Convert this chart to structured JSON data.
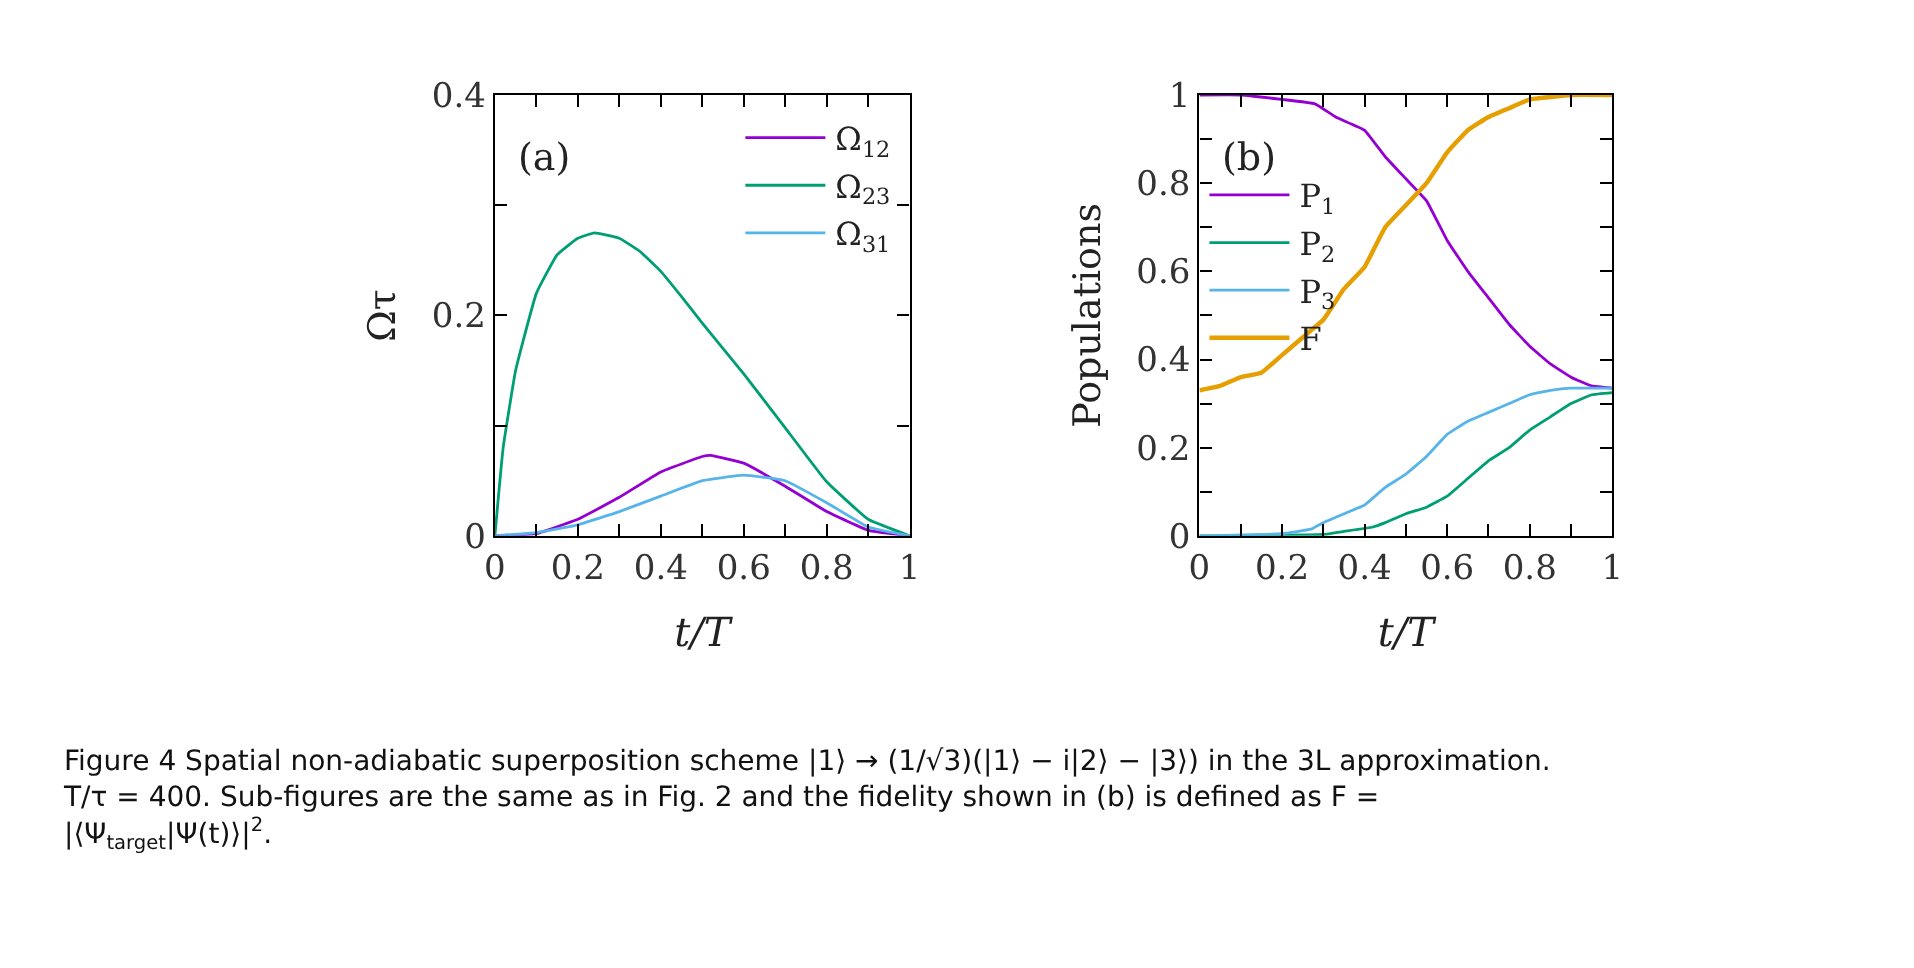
{
  "chart_data": [
    {
      "type": "line",
      "xlabel": "t/T",
      "ylabel": "Ωτ",
      "annotations": [
        "(a)",
        "Figure 4 Spatial non-adiabatic superposition scheme |1⟩ → (1/√3)(|1⟩ − i|2⟩ − |3⟩) in the 3L approximation. T/τ = 400. Sub-figures are the same as in Fig. 2 and the fidelity shown in (b) is defined as F = |⟨Ψ$_{target}$|Ψ(t)⟩|$^{2}$."
      ],
      "xlim": [
        0,
        1
      ],
      "xticks": [
        0,
        {
          "value": 0.1,
          "label": null
        },
        0.2,
        {
          "value": 0.3,
          "label": null
        },
        0.4,
        {
          "value": 0.5,
          "label": null
        },
        0.6,
        {
          "value": 0.7,
          "label": null
        },
        0.8,
        {
          "value": 0.9,
          "label": null
        },
        1
      ],
      "ylim": [
        0,
        0.4
      ],
      "yticks": [
        0,
        {
          "value": 0.1,
          "label": null
        },
        0.2,
        {
          "value": 0.3,
          "label": null
        },
        0.4
      ],
      "legend": "top right",
      "marker": "none",
      "line_style": "solid",
      "series": [
        {
          "name": "Ω$_{12}$",
          "color": "#9400d3",
          "x": [
            0,
            0.1,
            0.2,
            0.3,
            0.4,
            0.5,
            0.52,
            0.6,
            0.7,
            0.8,
            0.9,
            1
          ],
          "values": [
            0,
            0.002,
            0.015,
            0.035,
            0.058,
            0.072,
            0.073,
            0.066,
            0.045,
            0.022,
            0.005,
            0
          ]
        },
        {
          "name": "Ω$_{23}$",
          "color": "#009e73",
          "x": [
            0,
            0.02,
            0.05,
            0.1,
            0.15,
            0.2,
            0.24,
            0.3,
            0.35,
            0.4,
            0.45,
            0.5,
            0.6,
            0.7,
            0.8,
            0.9,
            1
          ],
          "values": [
            0,
            0.08,
            0.15,
            0.22,
            0.255,
            0.27,
            0.275,
            0.27,
            0.258,
            0.24,
            0.217,
            0.193,
            0.147,
            0.098,
            0.049,
            0.015,
            0
          ]
        },
        {
          "name": "Ω$_{31}$",
          "color": "#56b4e9",
          "x": [
            0,
            0.1,
            0.2,
            0.3,
            0.4,
            0.5,
            0.6,
            0.7,
            0.8,
            0.9,
            1
          ],
          "values": [
            0,
            0.003,
            0.01,
            0.022,
            0.036,
            0.05,
            0.055,
            0.05,
            0.03,
            0.008,
            0
          ]
        }
      ]
    },
    {
      "type": "line",
      "xlabel": "t/T",
      "ylabel": "Populations",
      "annotations": [
        "(b)"
      ],
      "xlim": [
        0,
        1
      ],
      "xticks": [
        0,
        {
          "value": 0.1,
          "label": null
        },
        0.2,
        {
          "value": 0.3,
          "label": null
        },
        0.4,
        {
          "value": 0.5,
          "label": null
        },
        0.6,
        {
          "value": 0.7,
          "label": null
        },
        0.8,
        {
          "value": 0.9,
          "label": null
        },
        1
      ],
      "ylim": [
        0,
        1
      ],
      "yticks": [
        0,
        {
          "value": 0.1,
          "label": null
        },
        0.2,
        {
          "value": 0.3,
          "label": null
        },
        0.4,
        {
          "value": 0.5,
          "label": null
        },
        0.6,
        {
          "value": 0.7,
          "label": null
        },
        0.8,
        {
          "value": 0.9,
          "label": null
        },
        1
      ],
      "legend": "left",
      "marker": "none",
      "line_style": "solid",
      "series": [
        {
          "name": "P$_{1}$",
          "color": "#9400d3",
          "x": [
            0,
            0.1,
            0.2,
            0.28,
            0.33,
            0.4,
            0.45,
            0.5,
            0.55,
            0.6,
            0.65,
            0.7,
            0.75,
            0.8,
            0.85,
            0.9,
            0.95,
            1
          ],
          "values": [
            1,
            1,
            0.99,
            0.98,
            0.95,
            0.92,
            0.86,
            0.81,
            0.76,
            0.67,
            0.6,
            0.54,
            0.48,
            0.43,
            0.39,
            0.36,
            0.34,
            0.335
          ]
        },
        {
          "name": "P$_{2}$",
          "color": "#009e73",
          "x": [
            0,
            0.3,
            0.35,
            0.42,
            0.45,
            0.5,
            0.55,
            0.6,
            0.65,
            0.7,
            0.75,
            0.8,
            0.85,
            0.9,
            0.95,
            1
          ],
          "values": [
            0,
            0.003,
            0.01,
            0.02,
            0.03,
            0.05,
            0.065,
            0.09,
            0.13,
            0.17,
            0.2,
            0.24,
            0.27,
            0.3,
            0.32,
            0.325
          ]
        },
        {
          "name": "P$_{3}$",
          "color": "#56b4e9",
          "x": [
            0,
            0.2,
            0.27,
            0.3,
            0.35,
            0.4,
            0.45,
            0.5,
            0.55,
            0.6,
            0.65,
            0.7,
            0.75,
            0.8,
            0.85,
            0.9,
            1
          ],
          "values": [
            0,
            0.005,
            0.015,
            0.03,
            0.05,
            0.07,
            0.11,
            0.14,
            0.18,
            0.23,
            0.26,
            0.28,
            0.3,
            0.32,
            0.33,
            0.335,
            0.335
          ]
        },
        {
          "name": "F",
          "color": "#e69f00",
          "x": [
            0,
            0.05,
            0.1,
            0.15,
            0.2,
            0.25,
            0.3,
            0.35,
            0.4,
            0.45,
            0.5,
            0.55,
            0.6,
            0.65,
            0.7,
            0.75,
            0.8,
            0.9,
            1
          ],
          "values": [
            0.33,
            0.34,
            0.36,
            0.37,
            0.41,
            0.45,
            0.49,
            0.56,
            0.61,
            0.7,
            0.75,
            0.8,
            0.87,
            0.92,
            0.95,
            0.97,
            0.99,
            1,
            1
          ]
        }
      ]
    }
  ]
}
